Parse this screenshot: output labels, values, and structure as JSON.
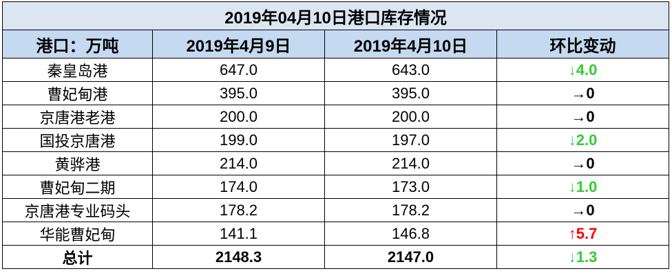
{
  "table": {
    "title": "2019年04月10日港口库存情况",
    "header": [
      "港口：万吨",
      "2019年4月9日",
      "2019年4月10日",
      "环比变动"
    ],
    "rows": [
      [
        "秦皇岛港",
        "647.0",
        "643.0",
        {
          "text": "↓4.0",
          "color": "#33cc33"
        }
      ],
      [
        "曹妃甸港",
        "395.0",
        "395.0",
        {
          "text": "→0",
          "color": "#000000"
        }
      ],
      [
        "京唐港老港",
        "200.0",
        "200.0",
        {
          "text": "→0",
          "color": "#000000"
        }
      ],
      [
        "国投京唐港",
        "199.0",
        "197.0",
        {
          "text": "↓2.0",
          "color": "#33cc33"
        }
      ],
      [
        "黄骅港",
        "214.0",
        "214.0",
        {
          "text": "→0",
          "color": "#000000"
        }
      ],
      [
        "曹妃甸二期",
        "174.0",
        "173.0",
        {
          "text": "↓1.0",
          "color": "#33cc33"
        }
      ],
      [
        "京唐港专业码头",
        "178.2",
        "178.2",
        {
          "text": "→0",
          "color": "#000000"
        }
      ],
      [
        "华能曹妃甸",
        "141.1",
        "146.8",
        {
          "text": "↑5.7",
          "color": "#ff0000"
        }
      ]
    ],
    "total": [
      "总计",
      "2148.3",
      "2147.0",
      {
        "text": "↓1.3",
        "color": "#33cc33"
      }
    ]
  }
}
